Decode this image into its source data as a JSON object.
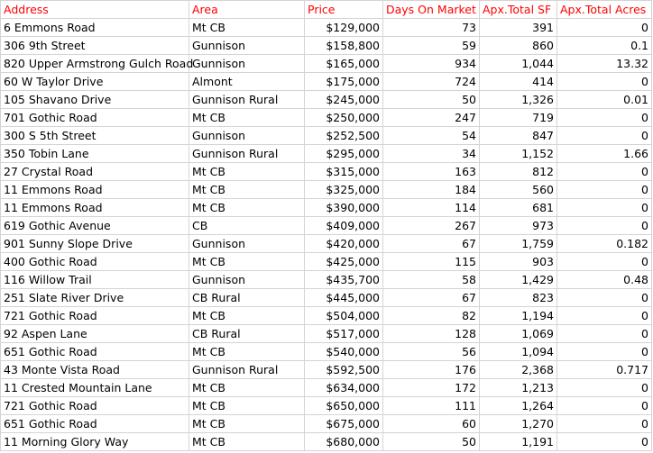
{
  "header": {
    "address": "Address",
    "area": "Area",
    "price": "Price",
    "days_on_market": "Days On Market",
    "total_sf": "Apx.Total SF",
    "total_acres": "Apx.Total Acres"
  },
  "header_color": "#ff0000",
  "rows": [
    {
      "address": "6 Emmons Road",
      "area": "Mt CB",
      "price": "$129,000",
      "dom": "73",
      "sf": "391",
      "acres": "0"
    },
    {
      "address": "306 9th Street",
      "area": "Gunnison",
      "price": "$158,800",
      "dom": "59",
      "sf": "860",
      "acres": "0.1"
    },
    {
      "address": "820 Upper Armstrong Gulch Road",
      "area": "Gunnison",
      "price": "$165,000",
      "dom": "934",
      "sf": "1,044",
      "acres": "13.32"
    },
    {
      "address": "60 W Taylor Drive",
      "area": "Almont",
      "price": "$175,000",
      "dom": "724",
      "sf": "414",
      "acres": "0"
    },
    {
      "address": "105 Shavano Drive",
      "area": "Gunnison Rural",
      "price": "$245,000",
      "dom": "50",
      "sf": "1,326",
      "acres": "0.01"
    },
    {
      "address": "701 Gothic Road",
      "area": "Mt CB",
      "price": "$250,000",
      "dom": "247",
      "sf": "719",
      "acres": "0"
    },
    {
      "address": "300 S 5th Street",
      "area": "Gunnison",
      "price": "$252,500",
      "dom": "54",
      "sf": "847",
      "acres": "0"
    },
    {
      "address": "350 Tobin Lane",
      "area": "Gunnison Rural",
      "price": "$295,000",
      "dom": "34",
      "sf": "1,152",
      "acres": "1.66"
    },
    {
      "address": "27 Crystal Road",
      "area": "Mt CB",
      "price": "$315,000",
      "dom": "163",
      "sf": "812",
      "acres": "0"
    },
    {
      "address": "11 Emmons Road",
      "area": "Mt CB",
      "price": "$325,000",
      "dom": "184",
      "sf": "560",
      "acres": "0"
    },
    {
      "address": "11 Emmons Road",
      "area": "Mt CB",
      "price": "$390,000",
      "dom": "114",
      "sf": "681",
      "acres": "0"
    },
    {
      "address": "619 Gothic Avenue",
      "area": "CB",
      "price": "$409,000",
      "dom": "267",
      "sf": "973",
      "acres": "0"
    },
    {
      "address": "901 Sunny Slope Drive",
      "area": "Gunnison",
      "price": "$420,000",
      "dom": "67",
      "sf": "1,759",
      "acres": "0.182"
    },
    {
      "address": "400 Gothic Road",
      "area": "Mt CB",
      "price": "$425,000",
      "dom": "115",
      "sf": "903",
      "acres": "0"
    },
    {
      "address": "116 Willow Trail",
      "area": "Gunnison",
      "price": "$435,700",
      "dom": "58",
      "sf": "1,429",
      "acres": "0.48"
    },
    {
      "address": "251 Slate River Drive",
      "area": "CB Rural",
      "price": "$445,000",
      "dom": "67",
      "sf": "823",
      "acres": "0"
    },
    {
      "address": "721 Gothic Road",
      "area": "Mt CB",
      "price": "$504,000",
      "dom": "82",
      "sf": "1,194",
      "acres": "0"
    },
    {
      "address": "92 Aspen Lane",
      "area": "CB Rural",
      "price": "$517,000",
      "dom": "128",
      "sf": "1,069",
      "acres": "0"
    },
    {
      "address": "651 Gothic Road",
      "area": "Mt CB",
      "price": "$540,000",
      "dom": "56",
      "sf": "1,094",
      "acres": "0"
    },
    {
      "address": "43 Monte Vista Road",
      "area": "Gunnison Rural",
      "price": "$592,500",
      "dom": "176",
      "sf": "2,368",
      "acres": "0.717"
    },
    {
      "address": "11 Crested Mountain Lane",
      "area": "Mt CB",
      "price": "$634,000",
      "dom": "172",
      "sf": "1,213",
      "acres": "0"
    },
    {
      "address": "721 Gothic Road",
      "area": "Mt CB",
      "price": "$650,000",
      "dom": "111",
      "sf": "1,264",
      "acres": "0"
    },
    {
      "address": "651 Gothic Road",
      "area": "Mt CB",
      "price": "$675,000",
      "dom": "60",
      "sf": "1,270",
      "acres": "0"
    },
    {
      "address": "11 Morning Glory Way",
      "area": "Mt CB",
      "price": "$680,000",
      "dom": "50",
      "sf": "1,191",
      "acres": "0"
    }
  ]
}
